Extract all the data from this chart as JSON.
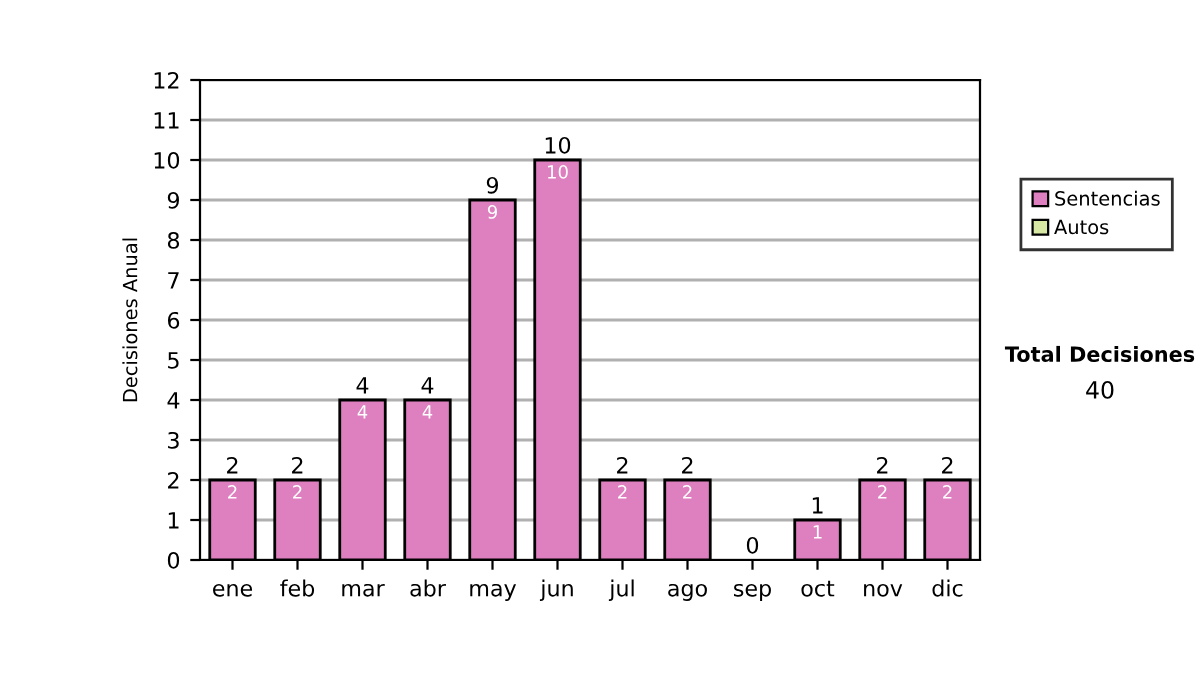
{
  "chart_data": {
    "type": "bar",
    "stacked": true,
    "ylabel": "Decisiones Anual",
    "categories": [
      "ene",
      "feb",
      "mar",
      "abr",
      "may",
      "jun",
      "jul",
      "ago",
      "sep",
      "oct",
      "nov",
      "dic"
    ],
    "series": [
      {
        "name": "Sentencias",
        "color": "#de80bf",
        "values": [
          2,
          2,
          4,
          4,
          9,
          10,
          2,
          2,
          0,
          1,
          2,
          2
        ],
        "value_labels": [
          "2",
          "2",
          "4",
          "4",
          "9",
          "10",
          "2",
          "2",
          null,
          "1",
          "2",
          "2"
        ]
      },
      {
        "name": "Autos",
        "color": "#d6e8a4",
        "values": [
          0,
          0,
          0,
          0,
          0,
          0,
          0,
          0,
          0,
          0,
          0,
          0
        ]
      }
    ],
    "totals": [
      "2",
      "2",
      "4",
      "4",
      "9",
      "10",
      "2",
      "2",
      "0",
      "1",
      "2",
      "2"
    ],
    "ylim": [
      0,
      12
    ],
    "yticks": [
      0,
      1,
      2,
      3,
      4,
      5,
      6,
      7,
      8,
      9,
      10,
      11,
      12
    ],
    "grid": "y",
    "legend": "right",
    "annotations": [
      "Total Decisiones",
      "40"
    ]
  }
}
